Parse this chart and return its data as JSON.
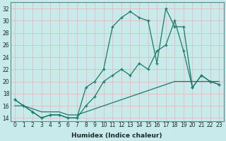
{
  "xlabel": "Humidex (Indice chaleur)",
  "bg_color": "#c8eaea",
  "grid_color": "#e8b8b8",
  "line_color": "#1a7a6a",
  "xlim_min": -0.5,
  "xlim_max": 23.5,
  "ylim_min": 13.5,
  "ylim_max": 33,
  "xticks": [
    0,
    1,
    2,
    3,
    4,
    5,
    6,
    7,
    8,
    9,
    10,
    11,
    12,
    13,
    14,
    15,
    16,
    17,
    18,
    19,
    20,
    21,
    22,
    23
  ],
  "yticks": [
    14,
    16,
    18,
    20,
    22,
    24,
    26,
    28,
    30,
    32
  ],
  "line_straight_x": [
    0,
    1,
    2,
    3,
    4,
    5,
    6,
    7,
    8,
    9,
    10,
    11,
    12,
    13,
    14,
    15,
    16,
    17,
    18,
    19,
    20,
    21,
    22,
    23
  ],
  "line_straight_y": [
    16,
    16,
    15.5,
    15,
    15,
    15,
    14.5,
    14.5,
    15,
    15.5,
    16,
    16.5,
    17,
    17.5,
    18,
    18.5,
    19,
    19.5,
    20,
    20,
    20,
    20,
    20,
    20
  ],
  "line_mid_x": [
    0,
    1,
    2,
    3,
    4,
    5,
    6,
    7,
    8,
    9,
    10,
    11,
    12,
    13,
    14,
    15,
    16,
    17,
    18,
    19,
    20,
    21,
    22,
    23
  ],
  "line_mid_y": [
    17,
    16,
    15,
    14,
    14.5,
    14.5,
    14,
    14,
    16,
    17.5,
    20,
    21,
    22,
    21,
    23,
    22,
    25,
    26,
    30,
    25,
    19,
    21,
    20,
    19.5
  ],
  "line_top_x": [
    0,
    1,
    2,
    3,
    4,
    5,
    6,
    7,
    8,
    9,
    10,
    11,
    12,
    13,
    14,
    15,
    16,
    17,
    18,
    19,
    20,
    21,
    22,
    23
  ],
  "line_top_y": [
    17,
    16,
    15,
    14,
    14.5,
    14.5,
    14,
    14,
    19,
    20,
    22,
    29,
    30.5,
    31.5,
    30.5,
    30,
    23,
    32,
    29,
    29,
    19,
    21,
    20,
    19.5
  ]
}
